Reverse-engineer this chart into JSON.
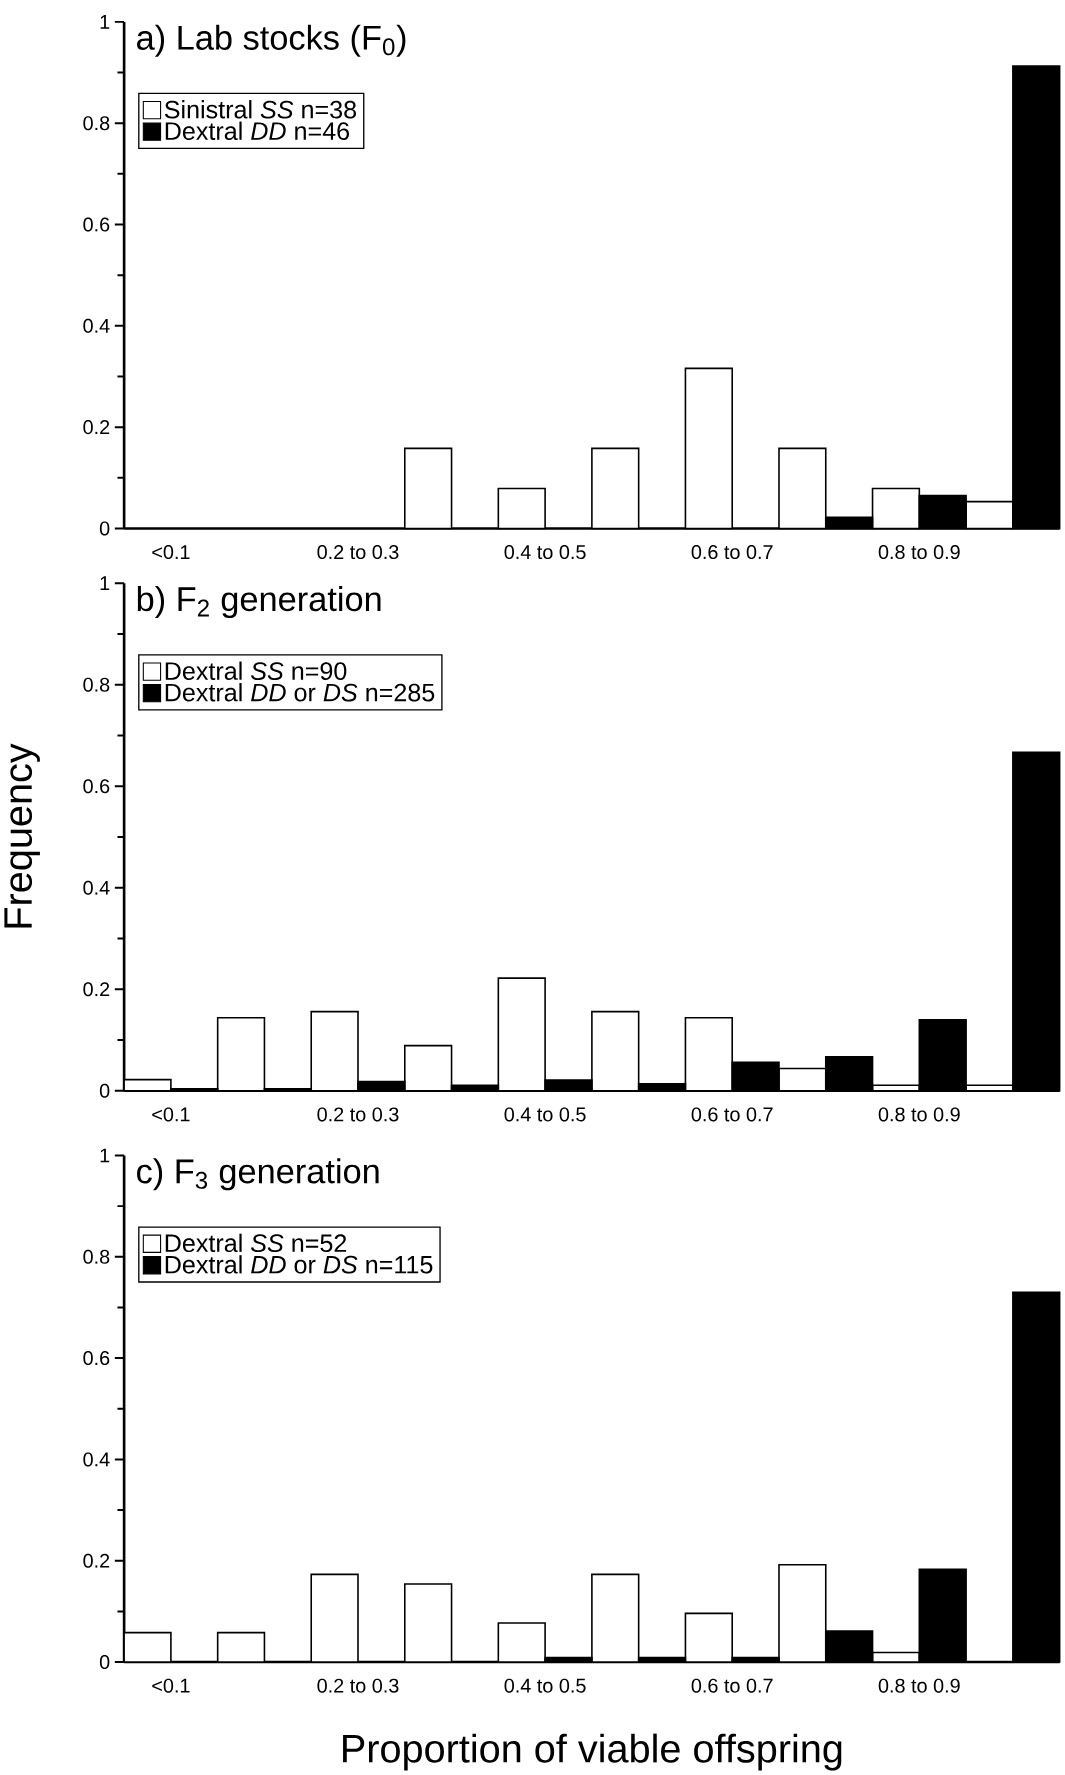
{
  "chart_data": [
    {
      "type": "bar",
      "title": "a) Lab stocks (F$_{0}$)",
      "categories": [
        "<0.1",
        null,
        "0.2 to 0.3",
        null,
        "0.4 to 0.5",
        null,
        "0.6 to 0.7",
        null,
        "0.8 to 0.9",
        null
      ],
      "series": [
        {
          "name": "Sinistral *SS* n=38",
          "color": "#ffffff",
          "values": [
            0,
            0,
            0,
            0.158,
            0.079,
            0.158,
            0.316,
            0.158,
            0.079,
            0.053
          ]
        },
        {
          "name": "Dextral *DD* n=46",
          "color": "#000000",
          "values": [
            0,
            0,
            0,
            0,
            0,
            0,
            0,
            0.022,
            0.065,
            0.913
          ]
        }
      ],
      "ylim": [
        0,
        1
      ],
      "yticks": [
        0,
        {
          "value": 0.1,
          "label": null
        },
        0.2,
        {
          "value": 0.3,
          "label": null
        },
        0.4,
        {
          "value": 0.5,
          "label": null
        },
        0.6,
        {
          "value": 0.7,
          "label": null
        },
        0.8,
        {
          "value": 0.9,
          "label": null
        },
        1
      ],
      "legend": "top left"
    },
    {
      "type": "bar",
      "title": "b) F$_{2}$ generation",
      "ylabel": "Frequency",
      "categories": [
        "<0.1",
        null,
        "0.2 to 0.3",
        null,
        "0.4 to 0.5",
        null,
        "0.6 to 0.7",
        null,
        "0.8 to 0.9",
        null
      ],
      "series": [
        {
          "name": "Dextral *SS* n=90",
          "color": "#ffffff",
          "values": [
            0.022,
            0.144,
            0.156,
            0.089,
            0.222,
            0.156,
            0.144,
            0.044,
            0.011,
            0.011
          ]
        },
        {
          "name": "Dextral *DD* or *DS* n=285",
          "color": "#000000",
          "values": [
            0.004,
            0.004,
            0.018,
            0.011,
            0.021,
            0.014,
            0.056,
            0.067,
            0.14,
            0.667
          ]
        }
      ],
      "ylim": [
        0,
        1
      ],
      "yticks": [
        0,
        {
          "value": 0.1,
          "label": null
        },
        0.2,
        {
          "value": 0.3,
          "label": null
        },
        0.4,
        {
          "value": 0.5,
          "label": null
        },
        0.6,
        {
          "value": 0.7,
          "label": null
        },
        0.8,
        {
          "value": 0.9,
          "label": null
        },
        1
      ],
      "legend": "top left"
    },
    {
      "type": "bar",
      "title": "c) F$_{3}$ generation",
      "xlabel": "Proportion of viable offspring",
      "categories": [
        "<0.1",
        null,
        "0.2 to 0.3",
        null,
        "0.4 to 0.5",
        null,
        "0.6 to 0.7",
        null,
        "0.8 to 0.9",
        null
      ],
      "series": [
        {
          "name": "Dextral *SS* n=52",
          "color": "#ffffff",
          "values": [
            0.058,
            0.058,
            0.173,
            0.154,
            0.077,
            0.173,
            0.096,
            0.192,
            0.019,
            0
          ]
        },
        {
          "name": "Dextral *DD* or *DS* n=115",
          "color": "#000000",
          "values": [
            0,
            0,
            0,
            0,
            0.009,
            0.009,
            0.009,
            0.061,
            0.183,
            0.73
          ]
        }
      ],
      "ylim": [
        0,
        1
      ],
      "yticks": [
        0,
        {
          "value": 0.1,
          "label": null
        },
        0.2,
        {
          "value": 0.3,
          "label": null
        },
        0.4,
        {
          "value": 0.5,
          "label": null
        },
        0.6,
        {
          "value": 0.7,
          "label": null
        },
        0.8,
        {
          "value": 0.9,
          "label": null
        },
        1
      ],
      "legend": "top left"
    }
  ]
}
